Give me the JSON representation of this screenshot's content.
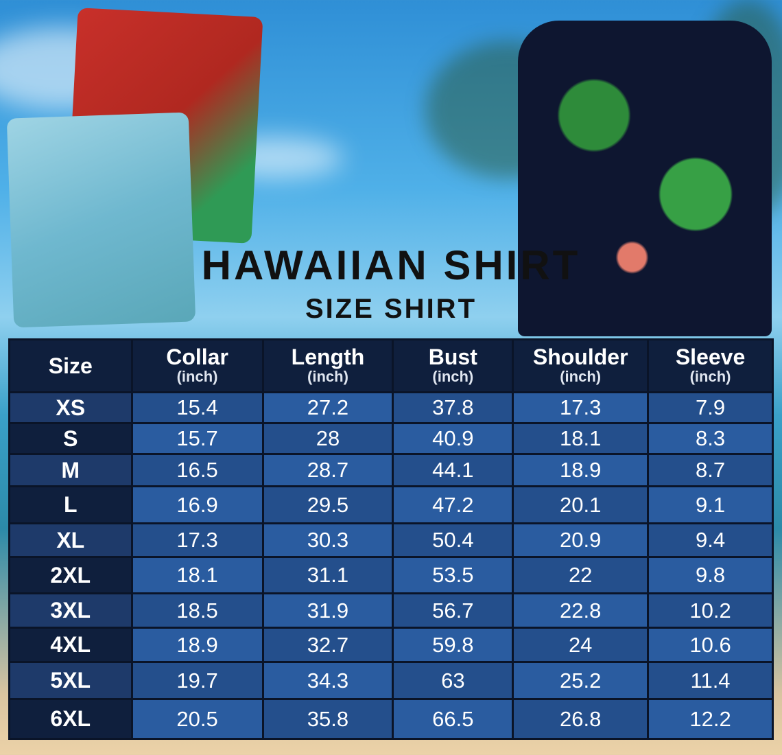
{
  "title": "HAWAIIAN SHIRT",
  "subtitle": "SIZE SHIRT",
  "colors": {
    "header_bg": "#0f1f3d",
    "size_dark": "#0f1f3d",
    "size_light": "#1e3a6a",
    "cell_light": "#2a5ca0",
    "cell_dark": "#244f8c",
    "grid": "#0a1428"
  },
  "table": {
    "headers": [
      {
        "label": "Size",
        "unit": ""
      },
      {
        "label": "Collar",
        "unit": "(inch)"
      },
      {
        "label": "Length",
        "unit": "(inch)"
      },
      {
        "label": "Bust",
        "unit": "(inch)"
      },
      {
        "label": "Shoulder",
        "unit": "(inch)"
      },
      {
        "label": "Sleeve",
        "unit": "(inch)"
      }
    ],
    "rows": [
      [
        "XS",
        "15.4",
        "27.2",
        "37.8",
        "17.3",
        "7.9"
      ],
      [
        "S",
        "15.7",
        "28",
        "40.9",
        "18.1",
        "8.3"
      ],
      [
        "M",
        "16.5",
        "28.7",
        "44.1",
        "18.9",
        "8.7"
      ],
      [
        "L",
        "16.9",
        "29.5",
        "47.2",
        "20.1",
        "9.1"
      ],
      [
        "XL",
        "17.3",
        "30.3",
        "50.4",
        "20.9",
        "9.4"
      ],
      [
        "2XL",
        "18.1",
        "31.1",
        "53.5",
        "22",
        "9.8"
      ],
      [
        "3XL",
        "18.5",
        "31.9",
        "56.7",
        "22.8",
        "10.2"
      ],
      [
        "4XL",
        "18.9",
        "32.7",
        "59.8",
        "24",
        "10.6"
      ],
      [
        "5XL",
        "19.7",
        "34.3",
        "63",
        "25.2",
        "11.4"
      ],
      [
        "6XL",
        "20.5",
        "35.8",
        "66.5",
        "26.8",
        "12.2"
      ]
    ]
  }
}
